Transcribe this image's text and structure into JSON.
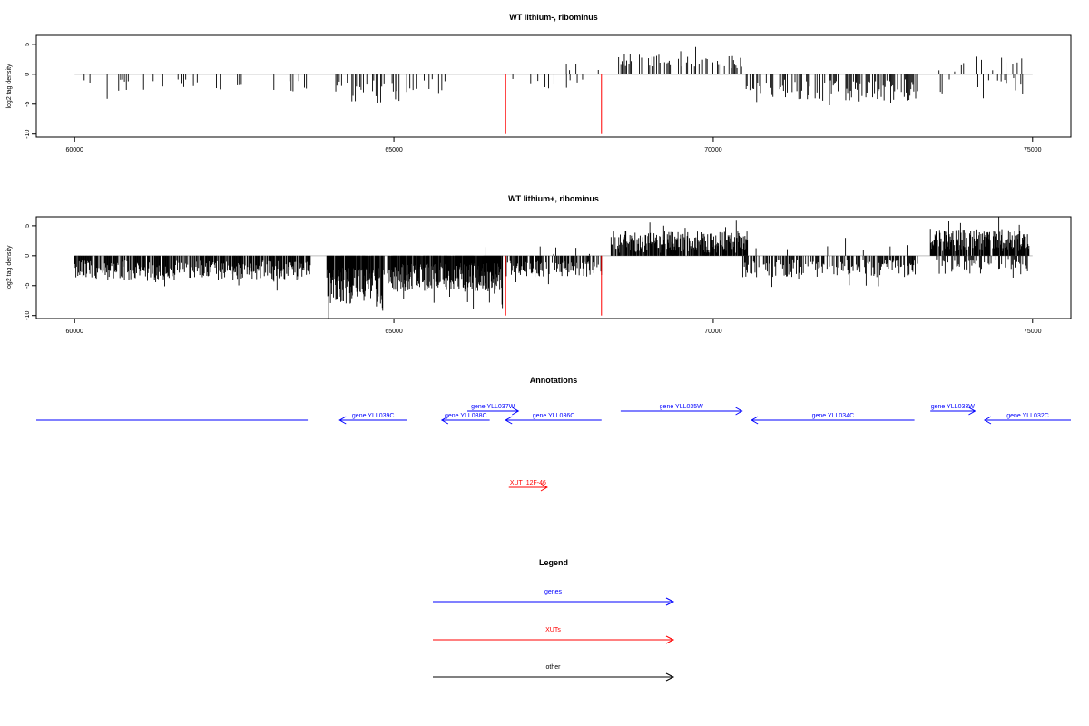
{
  "colors": {
    "gene": "#0000ff",
    "xut": "#ff0000",
    "other": "#000000",
    "bar": "#000000",
    "baseline": "#bebebe"
  },
  "chart_data": [
    {
      "type": "bar",
      "id": "panel1",
      "title": "WT lithium-, ribominus",
      "ylabel": "log2 tag density",
      "xlim": [
        59400,
        75600
      ],
      "ylim": [
        -10.5,
        6.5
      ],
      "xticks": [
        60000,
        65000,
        70000,
        75000
      ],
      "yticks": [
        -10,
        -5,
        0,
        5
      ],
      "highlight_x": [
        66750,
        68250
      ],
      "highlight_ymin": -10,
      "segments": [
        {
          "x0": 60000,
          "x1": 63650,
          "sign": -1,
          "mean": 2.0,
          "amp": 1.2,
          "step": 30,
          "sparse": 0.72,
          "seed": 11
        },
        {
          "x0": 64000,
          "x1": 65100,
          "sign": -1,
          "mean": 2.8,
          "amp": 2.0,
          "step": 18,
          "sparse": 0.55,
          "seed": 12
        },
        {
          "x0": 65150,
          "x1": 66000,
          "sign": -1,
          "mean": 2.2,
          "amp": 1.5,
          "step": 25,
          "sparse": 0.65,
          "seed": 13
        },
        {
          "x0": 66750,
          "x1": 68250,
          "sign": -1,
          "mean": 1.6,
          "amp": 1.0,
          "step": 28,
          "sparse": 0.65,
          "seed": 14
        },
        {
          "x0": 66800,
          "x1": 68250,
          "sign": 1,
          "mean": 0.8,
          "amp": 1.0,
          "step": 50,
          "sparse": 0.85,
          "seed": 15
        },
        {
          "x0": 68500,
          "x1": 70450,
          "sign": 1,
          "mean": 2.2,
          "amp": 1.2,
          "step": 18,
          "sparse": 0.55,
          "seed": 16
        },
        {
          "x0": 70500,
          "x1": 73200,
          "sign": -1,
          "mean": 2.6,
          "amp": 1.8,
          "step": 15,
          "sparse": 0.5,
          "seed": 17
        },
        {
          "x0": 73500,
          "x1": 74900,
          "sign": 1,
          "mean": 1.6,
          "amp": 1.3,
          "step": 35,
          "sparse": 0.72,
          "seed": 18
        },
        {
          "x0": 73500,
          "x1": 74900,
          "sign": -1,
          "mean": 1.7,
          "amp": 1.3,
          "step": 28,
          "sparse": 0.68,
          "seed": 19
        }
      ]
    },
    {
      "type": "bar",
      "id": "panel2",
      "title": "WT lithium+, ribominus",
      "ylabel": "log2 tag density",
      "xlim": [
        59400,
        75600
      ],
      "ylim": [
        -10.5,
        6.5
      ],
      "xticks": [
        60000,
        65000,
        70000,
        75000
      ],
      "yticks": [
        -10,
        -5,
        0,
        5
      ],
      "highlight_x": [
        66750,
        68250
      ],
      "highlight_ymin": -10,
      "segments": [
        {
          "x0": 60000,
          "x1": 63700,
          "sign": -1,
          "mean": 2.4,
          "amp": 1.6,
          "step": 10,
          "sparse": 0.2,
          "seed": 21
        },
        {
          "x0": 63950,
          "x1": 64850,
          "sign": -1,
          "mean": 5.0,
          "amp": 3.0,
          "step": 7,
          "sparse": 0.1,
          "seed": 22
        },
        {
          "x0": 64900,
          "x1": 66700,
          "sign": -1,
          "mean": 3.6,
          "amp": 2.4,
          "step": 7,
          "sparse": 0.1,
          "seed": 23
        },
        {
          "x0": 65900,
          "x1": 66700,
          "sign": 1,
          "mean": 1.0,
          "amp": 1.2,
          "step": 60,
          "sparse": 0.85,
          "seed": 24
        },
        {
          "x0": 66750,
          "x1": 68250,
          "sign": -1,
          "mean": 2.2,
          "amp": 1.4,
          "step": 10,
          "sparse": 0.3,
          "seed": 25
        },
        {
          "x0": 66800,
          "x1": 68200,
          "sign": 1,
          "mean": 1.2,
          "amp": 1.3,
          "step": 35,
          "sparse": 0.75,
          "seed": 26
        },
        {
          "x0": 68400,
          "x1": 70550,
          "sign": 1,
          "mean": 2.3,
          "amp": 1.8,
          "step": 8,
          "sparse": 0.2,
          "seed": 27
        },
        {
          "x0": 70450,
          "x1": 73200,
          "sign": -1,
          "mean": 2.1,
          "amp": 1.5,
          "step": 12,
          "sparse": 0.35,
          "seed": 28
        },
        {
          "x0": 70600,
          "x1": 73100,
          "sign": 1,
          "mean": 0.9,
          "amp": 1.0,
          "step": 70,
          "sparse": 0.85,
          "seed": 29
        },
        {
          "x0": 73400,
          "x1": 74950,
          "sign": 1,
          "mean": 2.6,
          "amp": 1.9,
          "step": 8,
          "sparse": 0.2,
          "seed": 30
        },
        {
          "x0": 73450,
          "x1": 74950,
          "sign": -1,
          "mean": 1.8,
          "amp": 1.3,
          "step": 15,
          "sparse": 0.45,
          "seed": 31
        }
      ]
    }
  ],
  "annotations": {
    "title": "Annotations",
    "features": [
      {
        "label": "",
        "kind": "gene",
        "x0": 59400,
        "x1": 63650,
        "dir": "none",
        "row": 0
      },
      {
        "label": "gene YLL039C",
        "kind": "gene",
        "x0": 64150,
        "x1": 65200,
        "dir": "left",
        "row": 0
      },
      {
        "label": "gene YLL038C",
        "kind": "gene",
        "x0": 65750,
        "x1": 66500,
        "dir": "left",
        "row": 0
      },
      {
        "label": "gene YLL037W",
        "kind": "gene",
        "x0": 66150,
        "x1": 66950,
        "dir": "right",
        "row": 1
      },
      {
        "label": "gene YLL036C",
        "kind": "gene",
        "x0": 66750,
        "x1": 68250,
        "dir": "left",
        "row": 0
      },
      {
        "label": "gene YLL035W",
        "kind": "gene",
        "x0": 68550,
        "x1": 70450,
        "dir": "right",
        "row": 1
      },
      {
        "label": "gene YLL034C",
        "kind": "gene",
        "x0": 70600,
        "x1": 73150,
        "dir": "left",
        "row": 0
      },
      {
        "label": "gene YLL033W",
        "kind": "gene",
        "x0": 73400,
        "x1": 74100,
        "dir": "right",
        "row": 1
      },
      {
        "label": "gene YLL032C",
        "kind": "gene",
        "x0": 74250,
        "x1": 75600,
        "dir": "left",
        "row": 0
      },
      {
        "label": "XUT_12F-46",
        "kind": "xut",
        "x0": 66800,
        "x1": 67400,
        "dir": "right",
        "row": 2
      }
    ]
  },
  "legend": {
    "title": "Legend",
    "items": [
      {
        "label": "genes",
        "kind": "gene"
      },
      {
        "label": "XUTs",
        "kind": "xut"
      },
      {
        "label": "other",
        "kind": "other"
      }
    ]
  }
}
